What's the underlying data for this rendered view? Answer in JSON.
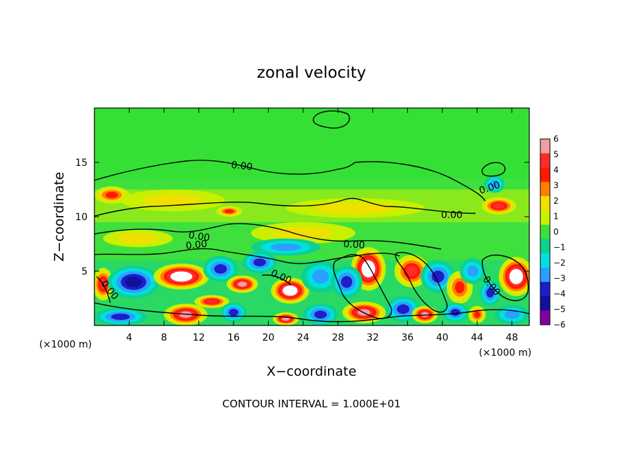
{
  "chart_data": {
    "type": "heatmap",
    "title": "zonal velocity",
    "xlabel": "X−coordinate",
    "ylabel": "Z−coordinate",
    "x_unit": "(×1000 m)",
    "z_unit": "(×1000 m)",
    "xlim": [
      0,
      50
    ],
    "ylim": [
      0,
      20
    ],
    "x_ticks": [
      4,
      8,
      12,
      16,
      20,
      24,
      28,
      32,
      36,
      40,
      44,
      48
    ],
    "y_ticks": [
      5,
      10,
      15
    ],
    "colorbar": {
      "min": -6,
      "max": 6,
      "ticks": [
        "6",
        "5",
        "4",
        "3",
        "2",
        "1",
        "0",
        "−1",
        "−2",
        "−3",
        "−4",
        "−5",
        "−6"
      ],
      "colors": [
        "#f0a0a0",
        "#ff2a2a",
        "#ff1a00",
        "#ff8000",
        "#f0e000",
        "#c8f000",
        "#3ee03e",
        "#10d090",
        "#00e0e0",
        "#2aa0ff",
        "#1e1ec8",
        "#10109a",
        "#8000a0"
      ]
    },
    "contour_labels": [
      "0.00",
      "0.00",
      "0.00",
      "0.00",
      "0.00",
      "0.00",
      "0.00",
      "0.00",
      "0.00"
    ],
    "footer": "CONTOUR INTERVAL = 1.000E+01",
    "features": [
      {
        "x": 2.0,
        "z": 12.0,
        "v": 3.5,
        "rx": 2.0,
        "rz": 0.8
      },
      {
        "x": 15.5,
        "z": 10.5,
        "v": 4.0,
        "rx": 1.5,
        "rz": 0.5
      },
      {
        "x": 46.5,
        "z": 11.0,
        "v": 4.5,
        "rx": 2.0,
        "rz": 0.8
      },
      {
        "x": 46.0,
        "z": 13.0,
        "v": -2.5,
        "rx": 1.2,
        "rz": 0.8
      },
      {
        "x": 9.0,
        "z": 11.5,
        "v": 1.6,
        "rx": 6.0,
        "rz": 1.0
      },
      {
        "x": 30.0,
        "z": 10.8,
        "v": 1.4,
        "rx": 8.0,
        "rz": 0.9
      },
      {
        "x": 24.0,
        "z": 8.5,
        "v": 1.2,
        "rx": 6.0,
        "rz": 1.0
      },
      {
        "x": 5.0,
        "z": 8.0,
        "v": 1.5,
        "rx": 4.0,
        "rz": 0.8
      },
      {
        "x": 22.0,
        "z": 7.2,
        "v": -2.5,
        "rx": 4.0,
        "rz": 0.8
      },
      {
        "x": 1.0,
        "z": 3.8,
        "v": 4.5,
        "rx": 1.2,
        "rz": 1.5
      },
      {
        "x": 4.5,
        "z": 4.0,
        "v": -4.5,
        "rx": 3.0,
        "rz": 1.5
      },
      {
        "x": 10.0,
        "z": 4.5,
        "v": 6.5,
        "rx": 3.2,
        "rz": 1.2
      },
      {
        "x": 14.5,
        "z": 5.2,
        "v": -3.5,
        "rx": 2.0,
        "rz": 1.2
      },
      {
        "x": 17.0,
        "z": 3.8,
        "v": 6.0,
        "rx": 1.8,
        "rz": 0.8
      },
      {
        "x": 19.0,
        "z": 5.8,
        "v": -3.5,
        "rx": 2.0,
        "rz": 1.0
      },
      {
        "x": 22.5,
        "z": 3.2,
        "v": 6.2,
        "rx": 2.2,
        "rz": 1.2
      },
      {
        "x": 26.0,
        "z": 4.5,
        "v": -3.0,
        "rx": 2.2,
        "rz": 1.5
      },
      {
        "x": 31.5,
        "z": 5.2,
        "v": 7.0,
        "rx": 2.0,
        "rz": 2.0
      },
      {
        "x": 29.0,
        "z": 4.0,
        "v": -3.5,
        "rx": 1.8,
        "rz": 1.5
      },
      {
        "x": 36.5,
        "z": 5.0,
        "v": 5.0,
        "rx": 2.0,
        "rz": 1.5
      },
      {
        "x": 39.5,
        "z": 4.5,
        "v": -3.5,
        "rx": 2.0,
        "rz": 1.5
      },
      {
        "x": 42.0,
        "z": 3.5,
        "v": 4.0,
        "rx": 1.5,
        "rz": 1.5
      },
      {
        "x": 43.5,
        "z": 5.0,
        "v": -3.0,
        "rx": 1.5,
        "rz": 1.2
      },
      {
        "x": 48.5,
        "z": 4.5,
        "v": 7.0,
        "rx": 2.0,
        "rz": 1.8
      },
      {
        "x": 45.5,
        "z": 3.0,
        "v": -4.0,
        "rx": 1.2,
        "rz": 1.2
      },
      {
        "x": 3.0,
        "z": 0.8,
        "v": -4.0,
        "rx": 3.0,
        "rz": 0.8
      },
      {
        "x": 10.5,
        "z": 1.0,
        "v": 6.0,
        "rx": 2.5,
        "rz": 1.0
      },
      {
        "x": 13.5,
        "z": 2.2,
        "v": 5.0,
        "rx": 2.0,
        "rz": 0.6
      },
      {
        "x": 16.0,
        "z": 1.2,
        "v": -3.5,
        "rx": 1.5,
        "rz": 0.9
      },
      {
        "x": 22.0,
        "z": 0.6,
        "v": 6.0,
        "rx": 1.5,
        "rz": 0.6
      },
      {
        "x": 26.0,
        "z": 1.0,
        "v": -3.5,
        "rx": 2.0,
        "rz": 1.0
      },
      {
        "x": 31.0,
        "z": 1.2,
        "v": 5.5,
        "rx": 2.5,
        "rz": 1.0
      },
      {
        "x": 35.5,
        "z": 1.5,
        "v": -4.0,
        "rx": 2.0,
        "rz": 1.2
      },
      {
        "x": 38.0,
        "z": 1.0,
        "v": 5.5,
        "rx": 1.5,
        "rz": 0.8
      },
      {
        "x": 41.5,
        "z": 1.2,
        "v": -3.5,
        "rx": 1.5,
        "rz": 0.9
      },
      {
        "x": 44.0,
        "z": 1.0,
        "v": 4.0,
        "rx": 1.0,
        "rz": 0.8
      },
      {
        "x": 48.0,
        "z": 1.0,
        "v": -3.0,
        "rx": 2.0,
        "rz": 0.9
      }
    ]
  }
}
